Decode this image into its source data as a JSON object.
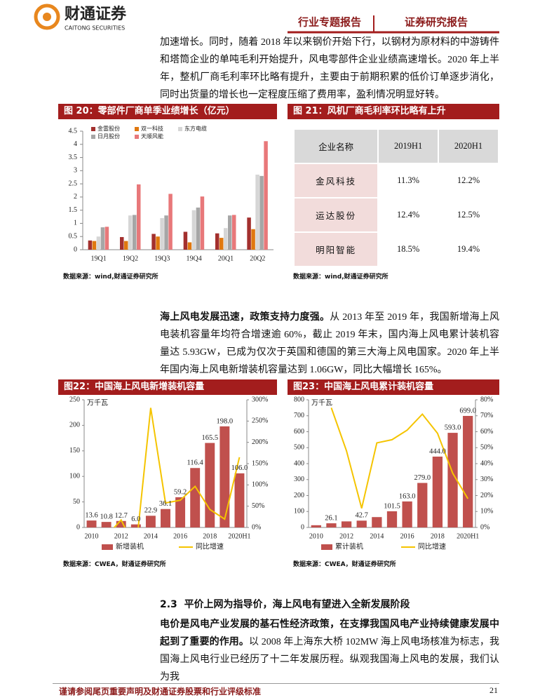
{
  "header": {
    "logo_cn": "财通证券",
    "logo_en": "CAITONG SECURITIES",
    "tags": [
      "行业专题报告",
      "证券研究报告"
    ]
  },
  "paragraph1": "加速增长。同时，随着 2018 年以来钢价开始下行，以钢材为原材料的中游铸件和塔筒企业的单吨毛利开始提升，风电零部件企业业绩高速增长。2020 年上半年，整机厂商毛利率环比略有提升，主要由于前期积累的低价订单逐步消化，同时出货量的增长也一定程度压缩了费用率，盈利情况明显好转。",
  "figure20": {
    "title": "图 20：零部件厂商单季业绩增长（亿元）",
    "source": "数据来源：wind,财通证券研究所",
    "chart": {
      "type": "bar",
      "categories": [
        "19Q1",
        "19Q2",
        "19Q3",
        "19Q4",
        "20Q1",
        "20Q2"
      ],
      "series": [
        {
          "name": "金雷股份",
          "color": "#a3302e",
          "values": [
            0.35,
            0.48,
            0.6,
            0.68,
            0.62,
            1.22
          ]
        },
        {
          "name": "双一科技",
          "color": "#e0780f",
          "values": [
            0.33,
            0.33,
            0.5,
            0.28,
            0.45,
            0.78
          ]
        },
        {
          "name": "东方电缆",
          "color": "#d6d6d6",
          "values": [
            0.5,
            1.3,
            1.2,
            1.5,
            0.82,
            2.85
          ]
        },
        {
          "name": "日月股份",
          "color": "#a6a6a6",
          "values": [
            0.85,
            1.32,
            1.3,
            1.6,
            1.3,
            2.8
          ]
        },
        {
          "name": "天顺风能",
          "color": "#e8787a",
          "values": [
            0.87,
            2.48,
            2.12,
            2.02,
            1.32,
            4.12
          ]
        }
      ],
      "ylim": [
        0,
        4.5
      ],
      "yticks": [
        0,
        0.5,
        1,
        1.5,
        2,
        2.5,
        3,
        3.5,
        4,
        4.5
      ],
      "legend": "top-left"
    }
  },
  "figure21": {
    "title": "图 21：风机厂商毛利率环比略有上升",
    "source": "数据来源：wind,财通证券研究所",
    "table": {
      "header": [
        "企业名称",
        "2019H1",
        "2020H1"
      ],
      "rows": [
        [
          "金风科技",
          "11.3%",
          "12.2%"
        ],
        [
          "运达股份",
          "12.4%",
          "12.5%"
        ],
        [
          "明阳智能",
          "18.5%",
          "19.4%"
        ]
      ]
    }
  },
  "paragraph2": {
    "bold": "海上风电发展迅速，政策支持力度强。",
    "text": "从 2013 年至 2019 年，我国新增海上风电装机容量年均符合增速逾 60%，截止 2019 年末，国内海上风电累计装机容量达 5.93GW，已成为仅次于英国和德国的第三大海上风电国家。2020 年上半年国内海上风电新增装机容量达到 1.06GW，同比大幅增长 165%。"
  },
  "figure22": {
    "title": "图22：中国海上风电新增装机容量",
    "source": "数据来源：CWEA，财通证券研究所",
    "chart": {
      "type": "bar-line",
      "unit_label": "万千瓦",
      "categories": [
        "2010",
        null,
        "2012",
        null,
        "2014",
        null,
        "2016",
        null,
        "2018",
        null,
        "2020H1"
      ],
      "series": [
        {
          "name": "新增装机",
          "color": "#c0504d",
          "values": [
            13.6,
            10.8,
            12.7,
            6,
            22.9,
            36.1,
            59.2,
            116.4,
            165.5,
            198,
            106
          ],
          "value_labels": [
            "13.6",
            "10.8",
            "12.7",
            "6.0",
            "22.9",
            "36.1",
            "59.2",
            "116.4",
            "165.5",
            "198.0",
            "106.0"
          ]
        },
        {
          "name": "同比增速",
          "color": "#f5c400",
          "axis": "y2",
          "values": [
            null,
            -20.6,
            17.6,
            -52.8,
            281,
            57.6,
            64,
            96.6,
            42.2,
            19.6,
            165
          ]
        }
      ],
      "ylim": [
        0,
        250
      ],
      "yticks": [
        0,
        50,
        100,
        150,
        200,
        250
      ],
      "y2lim": [
        0,
        300
      ],
      "y2ticks": [
        {
          "value": 0,
          "label": "0%"
        },
        {
          "value": 50,
          "label": "50%"
        },
        {
          "value": 100,
          "label": "100%"
        },
        {
          "value": 150,
          "label": "150%"
        },
        {
          "value": 200,
          "label": "200%"
        },
        {
          "value": 250,
          "label": "250%"
        },
        {
          "value": 300,
          "label": "300%"
        }
      ],
      "legend": "bottom"
    }
  },
  "figure23": {
    "title": "图23：中国海上风电累计装机容量",
    "source": "数据来源：CWEA，财通证券研究所",
    "chart": {
      "type": "bar-line",
      "unit_label": "万千瓦",
      "categories": [
        "2010",
        null,
        "2012",
        null,
        "2014",
        null,
        "2016",
        null,
        "2018",
        null,
        "2020H1"
      ],
      "series": [
        {
          "name": "累计装机",
          "color": "#c0504d",
          "values": [
            14,
            26.1,
            38,
            42.7,
            65,
            101.5,
            163,
            279,
            444,
            593,
            699
          ],
          "value_labels": [
            null,
            "26.1",
            null,
            "42.7",
            null,
            "101.5",
            "163.0",
            "279.0",
            "444.0",
            "593.0",
            "699.0"
          ]
        },
        {
          "name": "同比增速",
          "color": "#f5c400",
          "axis": "y2",
          "values": [
            null,
            75,
            48,
            12,
            53,
            55,
            61,
            71,
            59,
            34,
            18
          ]
        }
      ],
      "ylim": [
        0,
        800
      ],
      "yticks": [
        0,
        100,
        200,
        300,
        400,
        500,
        600,
        700,
        800
      ],
      "y2lim": [
        0,
        80
      ],
      "y2ticks": [
        {
          "value": 0,
          "label": "0%"
        },
        {
          "value": 10,
          "label": "10%"
        },
        {
          "value": 20,
          "label": "20%"
        },
        {
          "value": 30,
          "label": "30%"
        },
        {
          "value": 40,
          "label": "40%"
        },
        {
          "value": 50,
          "label": "50%"
        },
        {
          "value": 60,
          "label": "60%"
        },
        {
          "value": 70,
          "label": "70%"
        },
        {
          "value": 80,
          "label": "80%"
        }
      ],
      "legend": "bottom"
    }
  },
  "section": {
    "number": "2.3",
    "title": "平价上网为指导价，海上风电有望进入全新发展阶段"
  },
  "paragraph3": {
    "bold": "电价是风电产业发展的基石性经济政策，在支撑我国风电产业持续健康发展中起到了重要的作用。",
    "text": "以 2008 年上海东大桥 102MW 海上风电场核准为标志，我国海上风电行业已经历了十二年发展历程。纵观我国海上风电的发展，我们认为我"
  },
  "footer": {
    "disclaimer": "谨请参阅尾页重要声明及财通证券股票和行业评级标准",
    "page": 21
  }
}
